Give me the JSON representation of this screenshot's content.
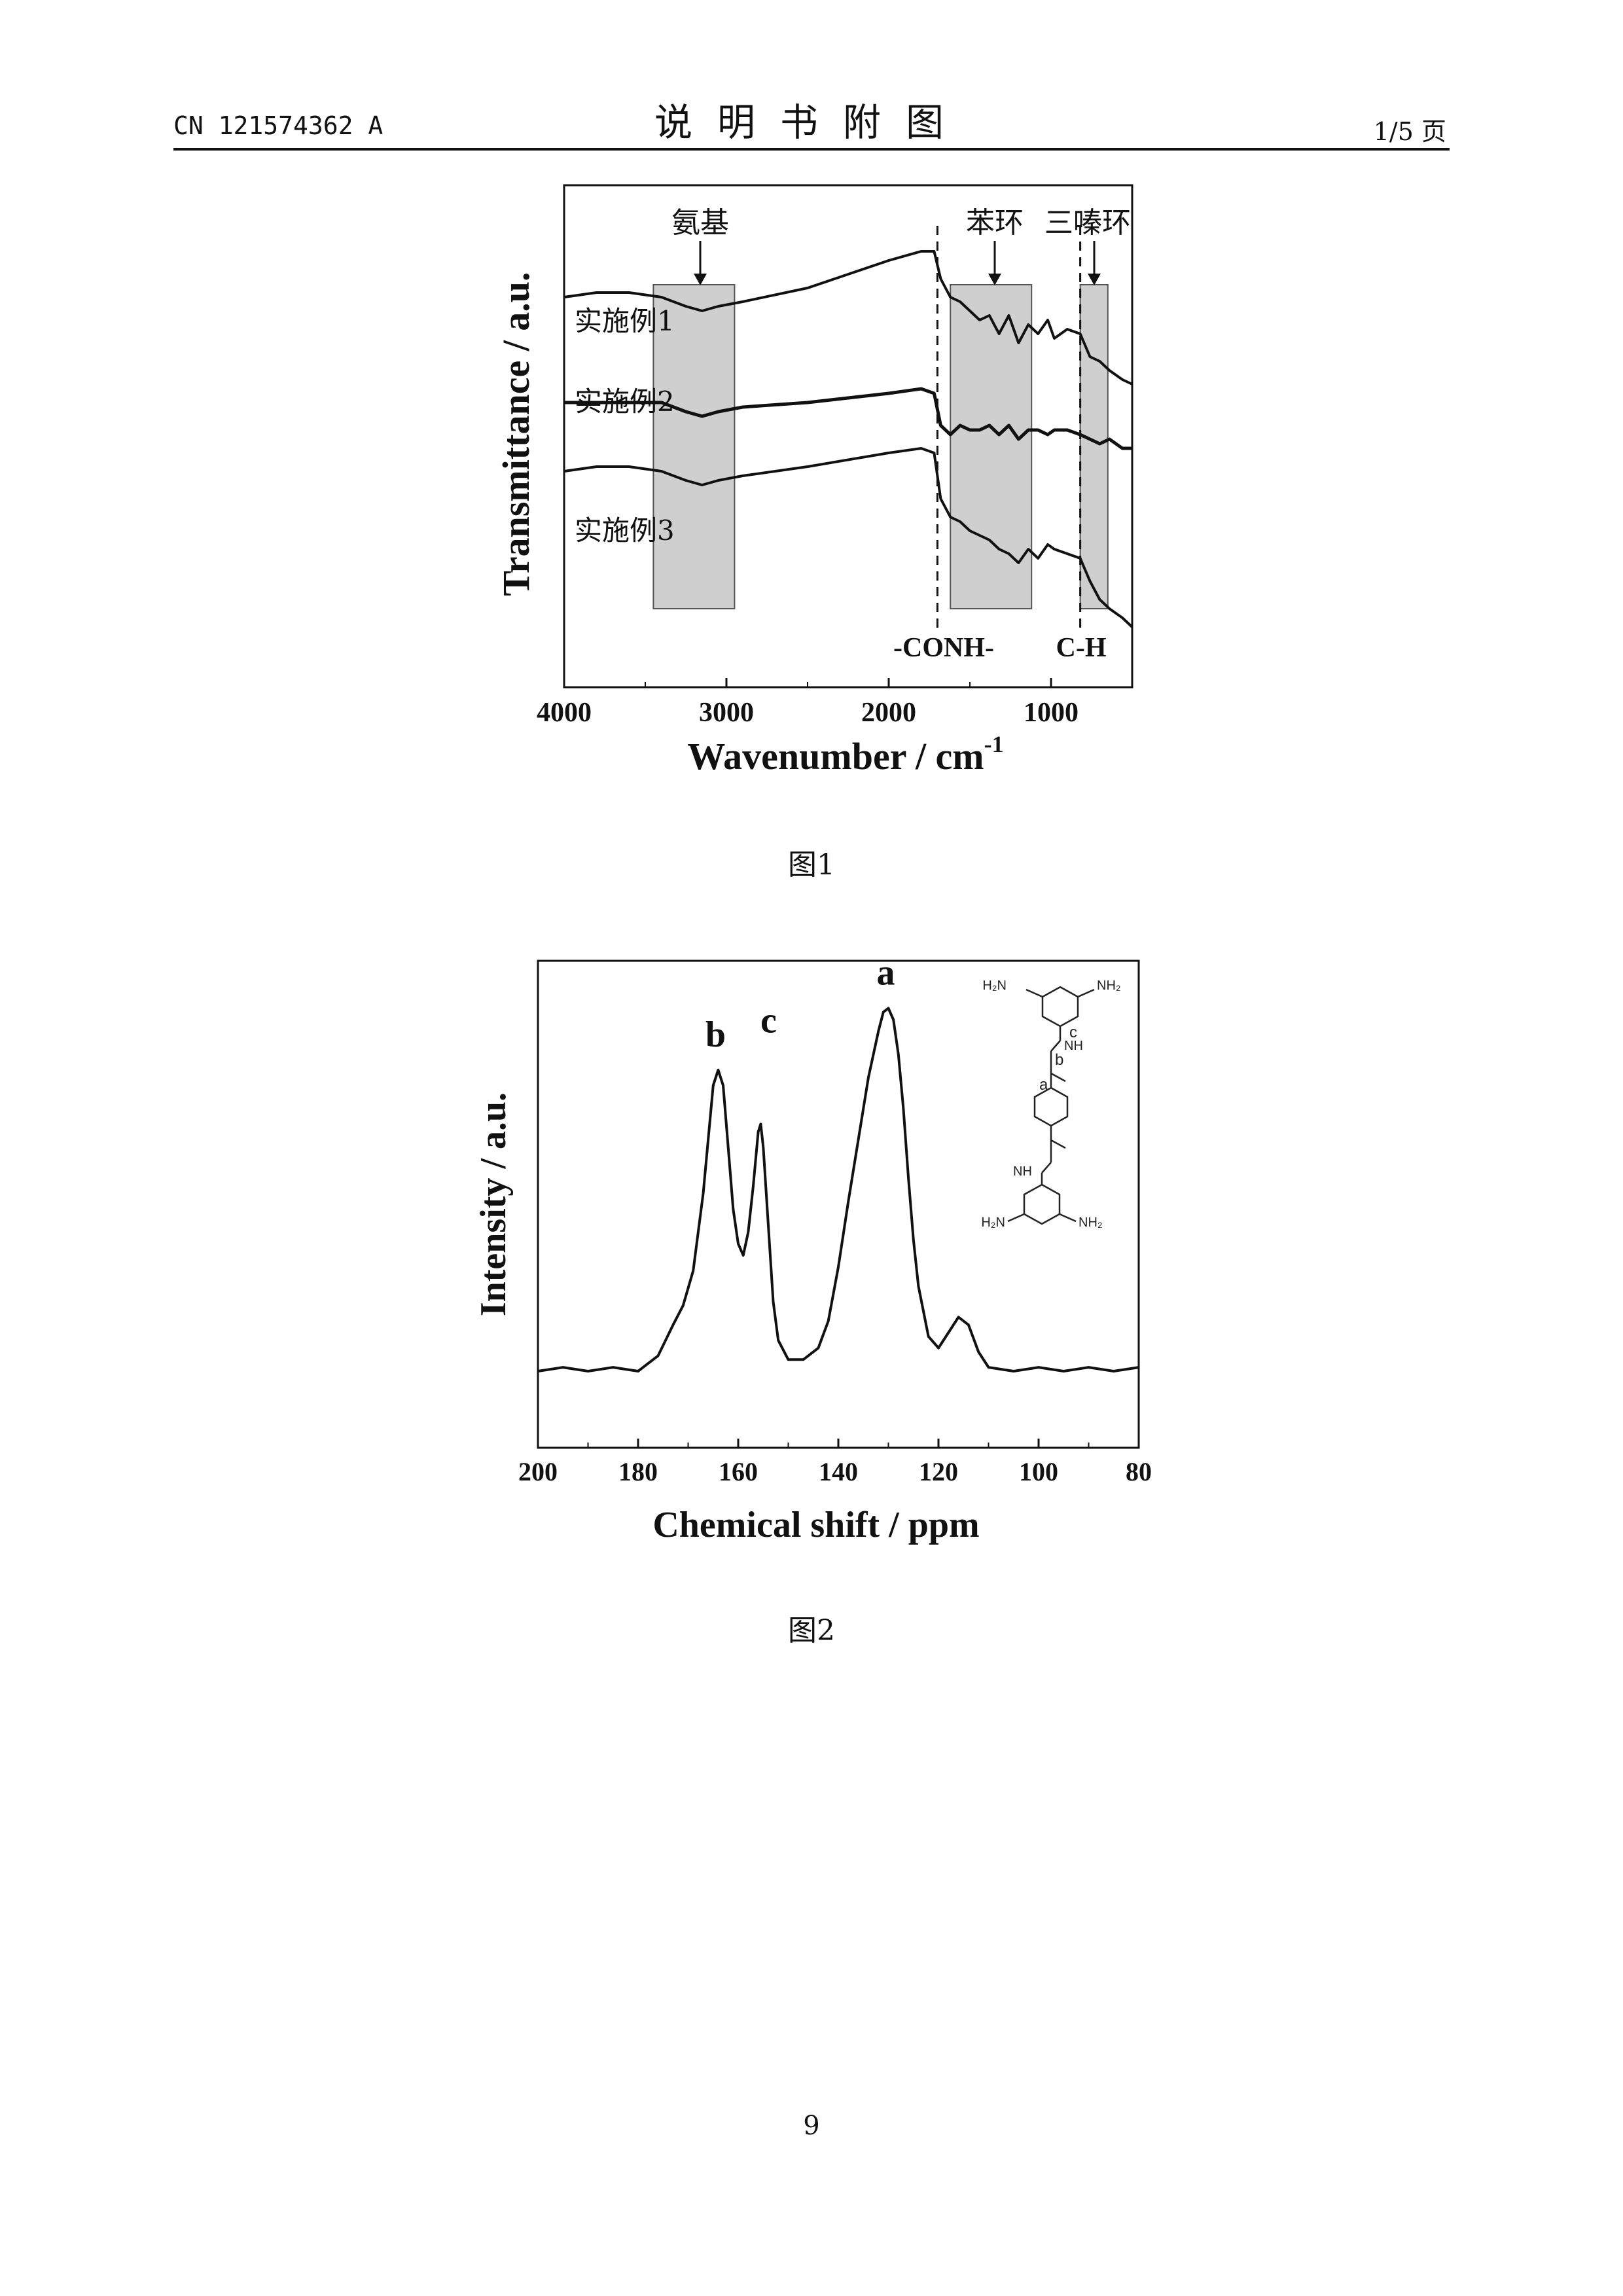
{
  "header": {
    "left": "CN 121574362 A",
    "center": "说明书附图",
    "right": "1/5 页"
  },
  "captions": {
    "fig1": "图1",
    "fig2": "图2"
  },
  "page_number": "9",
  "colors": {
    "ink": "#111111",
    "band_fill": "#cfcfcf",
    "band_stroke": "#555555"
  },
  "chart_data": [
    {
      "type": "line",
      "xlabel": "Wavenumber / cm",
      "xlabel_sup": "-1",
      "ylabel": "Transmittance / a.u.",
      "xlim": [
        4000,
        500
      ],
      "x_reversed": true,
      "yticks_shown": false,
      "xticks": [
        4000,
        3000,
        2000,
        1000
      ],
      "xtick_labels": [
        "4000",
        "3000",
        "2000",
        "1000"
      ],
      "series": [
        {
          "name": "实施例1",
          "x": [
            4000,
            3800,
            3600,
            3400,
            3250,
            3150,
            3050,
            2900,
            2500,
            2000,
            1800,
            1720,
            1680,
            1620,
            1560,
            1500,
            1440,
            1380,
            1320,
            1260,
            1200,
            1140,
            1080,
            1020,
            980,
            900,
            820,
            760,
            700,
            640,
            560,
            500
          ],
          "y": [
            0.78,
            0.79,
            0.79,
            0.78,
            0.76,
            0.75,
            0.76,
            0.77,
            0.8,
            0.86,
            0.88,
            0.88,
            0.82,
            0.78,
            0.77,
            0.75,
            0.73,
            0.74,
            0.7,
            0.74,
            0.68,
            0.72,
            0.7,
            0.73,
            0.69,
            0.71,
            0.7,
            0.65,
            0.64,
            0.62,
            0.6,
            0.59
          ]
        },
        {
          "name": "实施例2",
          "x": [
            4000,
            3800,
            3600,
            3400,
            3250,
            3150,
            3050,
            2900,
            2500,
            2000,
            1800,
            1720,
            1680,
            1620,
            1560,
            1500,
            1440,
            1380,
            1320,
            1260,
            1200,
            1140,
            1080,
            1020,
            980,
            900,
            820,
            760,
            700,
            640,
            560,
            500
          ],
          "y": [
            0.55,
            0.55,
            0.55,
            0.55,
            0.53,
            0.52,
            0.53,
            0.54,
            0.55,
            0.57,
            0.58,
            0.57,
            0.5,
            0.48,
            0.5,
            0.49,
            0.49,
            0.5,
            0.48,
            0.5,
            0.47,
            0.49,
            0.49,
            0.48,
            0.49,
            0.49,
            0.48,
            0.47,
            0.46,
            0.47,
            0.45,
            0.45
          ]
        },
        {
          "name": "实施例3",
          "x": [
            4000,
            3800,
            3600,
            3400,
            3250,
            3150,
            3050,
            2900,
            2500,
            2000,
            1800,
            1720,
            1680,
            1620,
            1560,
            1500,
            1440,
            1380,
            1320,
            1260,
            1200,
            1140,
            1080,
            1020,
            980,
            900,
            820,
            760,
            700,
            640,
            560,
            500
          ],
          "y": [
            0.4,
            0.41,
            0.41,
            0.4,
            0.38,
            0.37,
            0.38,
            0.39,
            0.41,
            0.44,
            0.45,
            0.44,
            0.34,
            0.3,
            0.29,
            0.27,
            0.26,
            0.25,
            0.23,
            0.22,
            0.2,
            0.23,
            0.21,
            0.24,
            0.23,
            0.22,
            0.21,
            0.16,
            0.12,
            0.1,
            0.08,
            0.06
          ]
        }
      ],
      "shaded_regions": [
        {
          "label": "氨基",
          "x_range": [
            3450,
            2950
          ]
        },
        {
          "label": "苯环",
          "x_range": [
            1620,
            1120
          ]
        },
        {
          "label": "三嗪环",
          "x_range": [
            820,
            650
          ]
        }
      ],
      "reference_lines": [
        {
          "label": "-CONH-",
          "x": 1700
        },
        {
          "label": "C-H",
          "x": 820
        }
      ]
    },
    {
      "type": "line",
      "xlabel": "Chemical shift / ppm",
      "ylabel": "Intensity / a.u.",
      "xlim": [
        200,
        80
      ],
      "x_reversed": true,
      "yticks_shown": false,
      "xticks": [
        200,
        180,
        160,
        140,
        120,
        100,
        80
      ],
      "xtick_labels": [
        "200",
        "180",
        "160",
        "140",
        "120",
        "100",
        "80"
      ],
      "peaks": [
        {
          "label": "a",
          "x": 130
        },
        {
          "label": "b",
          "x": 164
        },
        {
          "label": "c",
          "x": 155.5
        }
      ],
      "series": [
        {
          "name": "",
          "x": [
            200,
            195,
            190,
            185,
            180,
            176,
            173,
            171,
            169,
            167,
            165,
            164,
            163,
            162,
            161,
            160,
            159,
            158,
            157,
            156,
            155.5,
            155,
            154,
            153,
            152,
            150,
            147,
            144,
            142,
            140,
            138,
            136,
            134,
            132,
            131,
            130,
            129,
            128,
            127,
            126,
            125,
            124,
            122,
            120,
            118,
            116,
            114,
            112,
            110,
            105,
            100,
            95,
            90,
            85,
            80
          ],
          "y": [
            0.0,
            0.01,
            0.0,
            0.01,
            0.0,
            0.04,
            0.12,
            0.17,
            0.26,
            0.46,
            0.74,
            0.78,
            0.74,
            0.58,
            0.42,
            0.33,
            0.3,
            0.36,
            0.48,
            0.62,
            0.64,
            0.58,
            0.38,
            0.18,
            0.08,
            0.03,
            0.03,
            0.06,
            0.13,
            0.27,
            0.44,
            0.6,
            0.76,
            0.88,
            0.93,
            0.94,
            0.91,
            0.82,
            0.68,
            0.5,
            0.34,
            0.22,
            0.09,
            0.06,
            0.1,
            0.14,
            0.12,
            0.05,
            0.01,
            0.0,
            0.01,
            0.0,
            0.01,
            0.0,
            0.01
          ]
        }
      ],
      "inset_structure_labels": {
        "top_amines": [
          "H₂N",
          "NH₂"
        ],
        "bottom_amines": [
          "H₂N",
          "NH₂"
        ],
        "amide_nh": [
          "NH",
          "NH"
        ],
        "carbon_labels": [
          "a",
          "b",
          "c"
        ]
      }
    }
  ]
}
